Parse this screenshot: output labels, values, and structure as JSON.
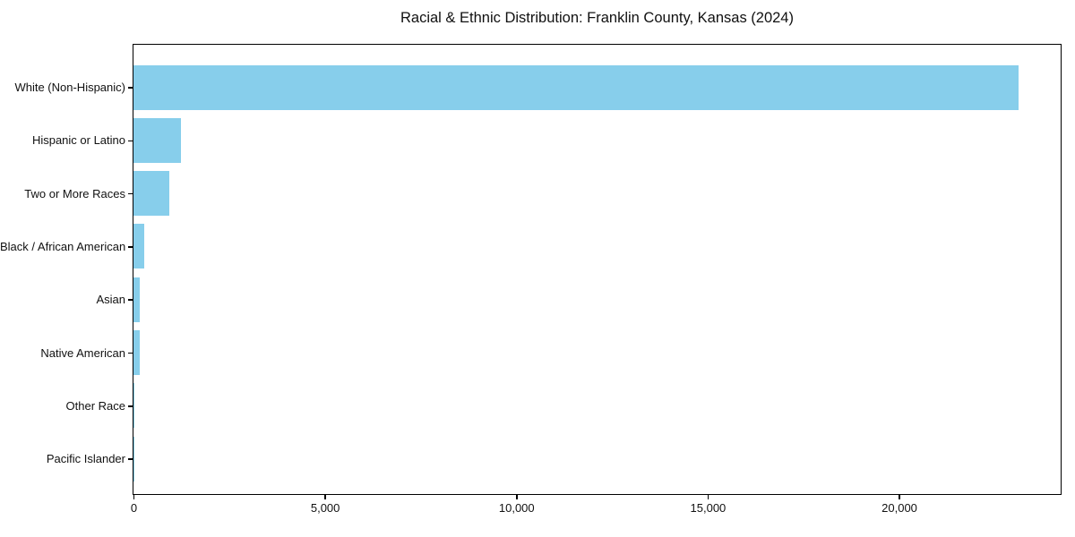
{
  "title": "Racial & Ethnic Distribution: Franklin County, Kansas (2024)",
  "chart_data": {
    "type": "bar",
    "orientation": "horizontal",
    "title": "Racial & Ethnic Distribution: Franklin County, Kansas (2024)",
    "xlabel": "",
    "ylabel": "",
    "categories": [
      "White (Non-Hispanic)",
      "Hispanic or Latino",
      "Two or More Races",
      "Black / African American",
      "Asian",
      "Native American",
      "Other Race",
      "Pacific Islander"
    ],
    "values": [
      23100,
      1240,
      940,
      285,
      165,
      155,
      25,
      15
    ],
    "xlim": [
      0,
      24200
    ],
    "x_ticks": [
      0,
      5000,
      10000,
      15000,
      20000
    ],
    "x_tick_labels": [
      "0",
      "5,000",
      "10,000",
      "15,000",
      "20,000"
    ],
    "bar_color": "#87CEEB",
    "axis_color": "#000000",
    "grid": false,
    "legend": false
  }
}
